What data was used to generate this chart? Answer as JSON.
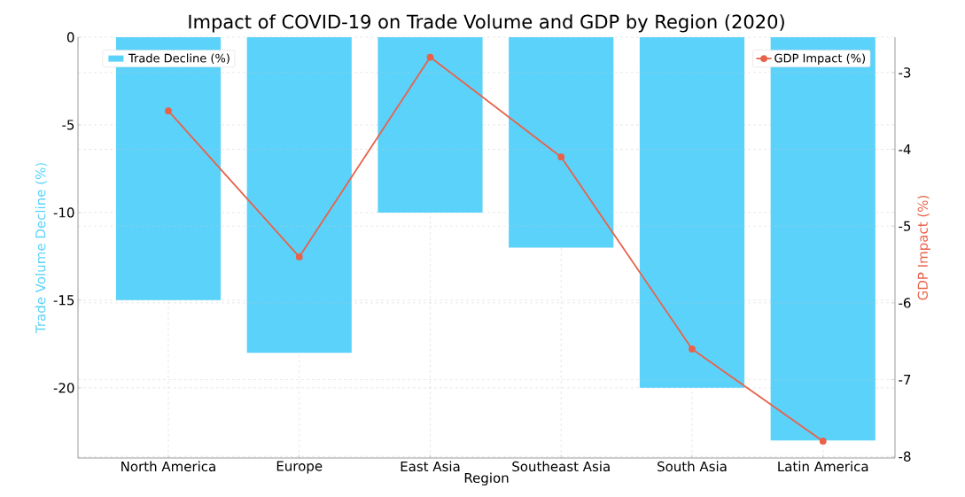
{
  "chart_data": {
    "type": "bar",
    "title": "Impact of COVID-19 on Trade Volume and GDP by Region (2020)",
    "xlabel": "Region",
    "ylabel": "Trade Volume Decline (%)",
    "y2label": "GDP Impact (%)",
    "categories": [
      "North America",
      "Europe",
      "East Asia",
      "Southeast Asia",
      "South Asia",
      "Latin America"
    ],
    "series": [
      {
        "name": "Trade Decline (%)",
        "color": "#5bd2fa",
        "values": [
          -15,
          -18,
          -10,
          -12,
          -20,
          -23
        ]
      },
      {
        "name": "GDP Impact (%)",
        "type": "line",
        "axis": "y2",
        "color": "#e8624a",
        "values": [
          -3.5,
          -5.4,
          -2.8,
          -4.1,
          -6.6,
          -7.8
        ]
      }
    ],
    "ylim": [
      -24,
      0
    ],
    "yticks": [
      -20,
      -15,
      -10,
      -5,
      0
    ],
    "y2lim": [
      -8.02,
      -2.54
    ],
    "y2ticks": [
      -8,
      -7,
      -6,
      -5,
      -4,
      -3
    ],
    "grid": true,
    "legend": "top",
    "marker": "circle"
  }
}
